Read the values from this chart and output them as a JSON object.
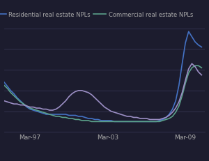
{
  "legend": [
    "Residential real estate NPLs",
    "Commercial real estate NPLs"
  ],
  "legend_colors": [
    "#4472c4",
    "#5ba08a"
  ],
  "line3_color": "#9b8ec4",
  "background_color": "#1c1c2e",
  "grid_color": "#3a3a5a",
  "tick_color": "#aaaaaa",
  "text_color": "#aaaaaa",
  "x_ticks_labels": [
    "Mar-97",
    "Mar-03",
    "Mar-09"
  ],
  "x_ticks_pos": [
    8,
    32,
    56
  ],
  "ylim": [
    0,
    1.0
  ],
  "xlim": [
    0,
    62
  ],
  "figsize": [
    3.0,
    2.32
  ],
  "dpi": 100,
  "res": [
    0.48,
    0.44,
    0.4,
    0.37,
    0.33,
    0.3,
    0.27,
    0.24,
    0.22,
    0.21,
    0.2,
    0.19,
    0.18,
    0.17,
    0.17,
    0.17,
    0.17,
    0.17,
    0.17,
    0.17,
    0.16,
    0.16,
    0.16,
    0.15,
    0.15,
    0.14,
    0.13,
    0.13,
    0.12,
    0.12,
    0.11,
    0.11,
    0.11,
    0.11,
    0.1,
    0.1,
    0.1,
    0.1,
    0.1,
    0.1,
    0.1,
    0.1,
    0.1,
    0.1,
    0.1,
    0.1,
    0.1,
    0.1,
    0.11,
    0.12,
    0.14,
    0.17,
    0.22,
    0.3,
    0.45,
    0.66,
    0.86,
    0.97,
    0.92,
    0.87,
    0.84,
    0.82
  ],
  "com": [
    0.45,
    0.42,
    0.38,
    0.35,
    0.32,
    0.29,
    0.27,
    0.25,
    0.23,
    0.22,
    0.21,
    0.2,
    0.19,
    0.18,
    0.17,
    0.16,
    0.15,
    0.15,
    0.14,
    0.14,
    0.13,
    0.13,
    0.12,
    0.12,
    0.11,
    0.11,
    0.11,
    0.1,
    0.1,
    0.1,
    0.1,
    0.1,
    0.1,
    0.1,
    0.1,
    0.1,
    0.1,
    0.1,
    0.1,
    0.1,
    0.1,
    0.1,
    0.1,
    0.1,
    0.1,
    0.1,
    0.1,
    0.1,
    0.1,
    0.11,
    0.12,
    0.13,
    0.15,
    0.19,
    0.25,
    0.35,
    0.47,
    0.57,
    0.62,
    0.64,
    0.64,
    0.62
  ],
  "pur": [
    0.3,
    0.29,
    0.28,
    0.27,
    0.27,
    0.26,
    0.26,
    0.25,
    0.24,
    0.24,
    0.23,
    0.23,
    0.22,
    0.22,
    0.21,
    0.21,
    0.22,
    0.24,
    0.27,
    0.3,
    0.34,
    0.37,
    0.39,
    0.4,
    0.4,
    0.39,
    0.38,
    0.36,
    0.33,
    0.3,
    0.27,
    0.24,
    0.22,
    0.2,
    0.19,
    0.18,
    0.17,
    0.16,
    0.15,
    0.15,
    0.14,
    0.14,
    0.13,
    0.13,
    0.13,
    0.12,
    0.12,
    0.12,
    0.12,
    0.13,
    0.14,
    0.16,
    0.19,
    0.23,
    0.29,
    0.38,
    0.5,
    0.61,
    0.66,
    0.63,
    0.58,
    0.55
  ]
}
